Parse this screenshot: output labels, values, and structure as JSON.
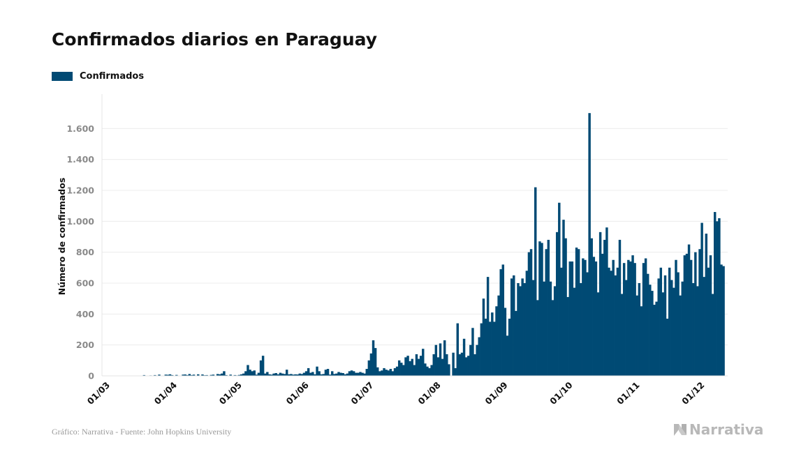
{
  "title": "Confirmados diarios en Paraguay",
  "legend": {
    "label": "Confirmados",
    "color": "#004a74"
  },
  "source": "Gráfico: Narrativa - Fuente: John Hopkins University",
  "brand": {
    "name": "Narrativa",
    "icon": "narrativa-logo-icon",
    "color": "#b8b8b8"
  },
  "chart_data": {
    "type": "bar",
    "ylabel": "Número de confirmados",
    "ylim": [
      0,
      1800
    ],
    "yticks": [
      0,
      200,
      400,
      600,
      800,
      1000,
      1200,
      1400,
      1600
    ],
    "ytick_labels": [
      "0",
      "200",
      "400",
      "600",
      "800",
      "1.000",
      "1.200",
      "1.400",
      "1.600"
    ],
    "xticks": [
      {
        "label": "01/03",
        "day": 0
      },
      {
        "label": "01/04",
        "day": 31
      },
      {
        "label": "01/05",
        "day": 61
      },
      {
        "label": "01/06",
        "day": 92
      },
      {
        "label": "01/07",
        "day": 122
      },
      {
        "label": "01/08",
        "day": 153
      },
      {
        "label": "01/09",
        "day": 184
      },
      {
        "label": "01/10",
        "day": 214
      },
      {
        "label": "01/11",
        "day": 245
      },
      {
        "label": "01/12",
        "day": 275
      }
    ],
    "grid": true,
    "legend_position": "top-left",
    "color": "#004a74",
    "series": [
      {
        "name": "Confirmados",
        "values": [
          0,
          0,
          0,
          0,
          0,
          0,
          0,
          0,
          0,
          0,
          0,
          0,
          0,
          0,
          0,
          2,
          0,
          5,
          0,
          0,
          3,
          0,
          5,
          0,
          8,
          0,
          0,
          8,
          7,
          10,
          5,
          0,
          6,
          0,
          0,
          8,
          9,
          5,
          12,
          5,
          8,
          0,
          10,
          0,
          9,
          4,
          5,
          2,
          6,
          8,
          0,
          12,
          10,
          15,
          30,
          5,
          0,
          8,
          0,
          5,
          3,
          6,
          10,
          15,
          30,
          70,
          40,
          30,
          35,
          8,
          20,
          100,
          130,
          15,
          25,
          10,
          8,
          15,
          18,
          10,
          20,
          15,
          12,
          40,
          10,
          12,
          8,
          10,
          9,
          15,
          12,
          20,
          30,
          50,
          20,
          25,
          10,
          60,
          30,
          10,
          12,
          40,
          45,
          8,
          30,
          12,
          15,
          25,
          20,
          18,
          10,
          15,
          30,
          35,
          30,
          20,
          20,
          25,
          20,
          15,
          45,
          100,
          145,
          230,
          180,
          55,
          30,
          35,
          50,
          40,
          35,
          45,
          30,
          50,
          60,
          100,
          85,
          70,
          120,
          130,
          95,
          110,
          70,
          140,
          110,
          130,
          175,
          80,
          60,
          50,
          70,
          140,
          200,
          120,
          210,
          110,
          230,
          140,
          75,
          0,
          150,
          50,
          340,
          140,
          150,
          240,
          120,
          130,
          200,
          310,
          140,
          200,
          250,
          340,
          500,
          370,
          640,
          350,
          410,
          350,
          450,
          520,
          690,
          720,
          440,
          260,
          370,
          630,
          650,
          420,
          600,
          580,
          630,
          600,
          680,
          800,
          820,
          620,
          1220,
          490,
          870,
          860,
          610,
          820,
          880,
          610,
          490,
          580,
          930,
          1120,
          700,
          1010,
          890,
          510,
          740,
          740,
          570,
          830,
          820,
          600,
          760,
          750,
          670,
          1700,
          890,
          770,
          740,
          540,
          930,
          790,
          880,
          960,
          700,
          680,
          750,
          650,
          700,
          880,
          530,
          730,
          620,
          750,
          740,
          780,
          730,
          520,
          600,
          450,
          730,
          760,
          660,
          590,
          550,
          460,
          480,
          630,
          700,
          540,
          650,
          370,
          700,
          620,
          570,
          750,
          670,
          520,
          610,
          780,
          790,
          850,
          750,
          600,
          800,
          580,
          820,
          990,
          640,
          920,
          700,
          780,
          530,
          1060,
          1000,
          1020,
          720,
          710
        ]
      }
    ]
  }
}
